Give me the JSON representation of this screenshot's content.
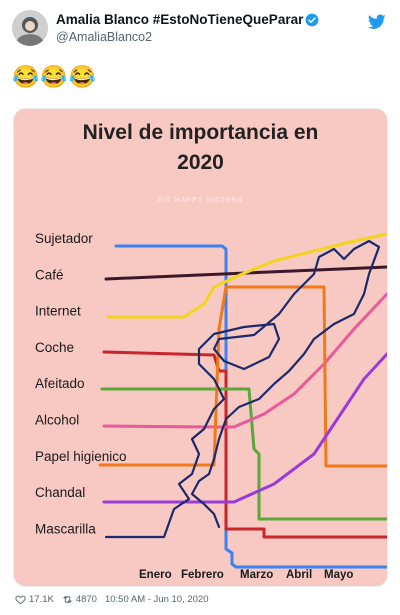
{
  "tweet": {
    "display_name": "Amalia Blanco #EstoNoTieneQueParar",
    "handle": "@AmaliaBlanco2",
    "text": "😂😂😂"
  },
  "colors": {
    "accent": "#1d9bf0",
    "media_bg": "#f8c8c3"
  },
  "icons": [
    "verified-badge-icon",
    "twitter-bird-icon",
    "heart-icon",
    "retweet-icon"
  ],
  "footer": {
    "likes": "17.1K",
    "retweets": "4870",
    "timestamp": "10:50 AM - Jun 10, 2020"
  },
  "media": {
    "title_line1": "Nivel de importancia en",
    "title_line2": "2020",
    "watermark": "FIT HAPPY SISTERS"
  },
  "chart_data": {
    "type": "line",
    "title": "Nivel de importancia en 2020",
    "x": [
      "Enero",
      "Febrero",
      "Marzo",
      "Abril",
      "Mayo"
    ],
    "categories": [
      "Sujetador",
      "Café",
      "Internet",
      "Coche",
      "Afeitado",
      "Alcohol",
      "Papel higienico",
      "Chandal",
      "Mascarilla"
    ],
    "series": [
      {
        "name": "Sujetador",
        "color": "#3b82f0"
      },
      {
        "name": "Café",
        "color": "#3a1a2a"
      },
      {
        "name": "Internet",
        "color": "#f2d51c"
      },
      {
        "name": "Coche",
        "color": "#c8262a"
      },
      {
        "name": "Afeitado",
        "color": "#5aa83a"
      },
      {
        "name": "Alcohol",
        "color": "#e85a9a"
      },
      {
        "name": "Papel higienico",
        "color": "#f07a1a"
      },
      {
        "name": "Chandal",
        "color": "#9a3ad8"
      },
      {
        "name": "Mascarilla",
        "color": "#1a2a6a"
      }
    ],
    "grid": false,
    "legend": "left"
  }
}
